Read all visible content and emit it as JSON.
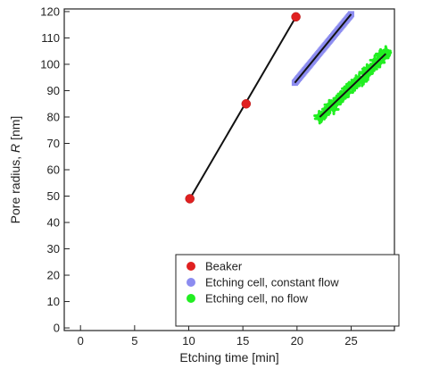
{
  "chart_data": {
    "type": "scatter",
    "xlabel": "Etching time [min]",
    "ylabel_prefix": "Pore radius, ",
    "ylabel_var": "R",
    "ylabel_suffix": " [nm]",
    "xlim": [
      -1.5,
      29
    ],
    "ylim": [
      -1,
      121
    ],
    "xticks": [
      0,
      5,
      10,
      15,
      20,
      25
    ],
    "yticks": [
      0,
      10,
      20,
      30,
      40,
      50,
      60,
      70,
      80,
      90,
      100,
      110,
      120
    ],
    "legend_position": "bottom-right",
    "series": [
      {
        "name": "Beaker",
        "color": "#e02020",
        "marker": "circle",
        "points": [
          [
            10.1,
            49
          ],
          [
            15.3,
            85
          ],
          [
            19.9,
            118
          ]
        ],
        "fit": [
          [
            10.1,
            49
          ],
          [
            19.9,
            118
          ]
        ]
      },
      {
        "name": "Etching cell, constant flow",
        "color": "#8c8cf0",
        "marker": "band",
        "x_range": [
          19.8,
          25.0
        ],
        "y_range": [
          93,
          119
        ],
        "fit": [
          [
            19.8,
            93
          ],
          [
            25.0,
            119
          ]
        ]
      },
      {
        "name": "Etching cell, no flow",
        "color": "#22ee22",
        "marker": "band-noisy",
        "x_range": [
          22.1,
          28.2
        ],
        "y_range": [
          79.5,
          104
        ],
        "fit": [
          [
            22.1,
            80
          ],
          [
            28.2,
            104
          ]
        ]
      }
    ]
  }
}
